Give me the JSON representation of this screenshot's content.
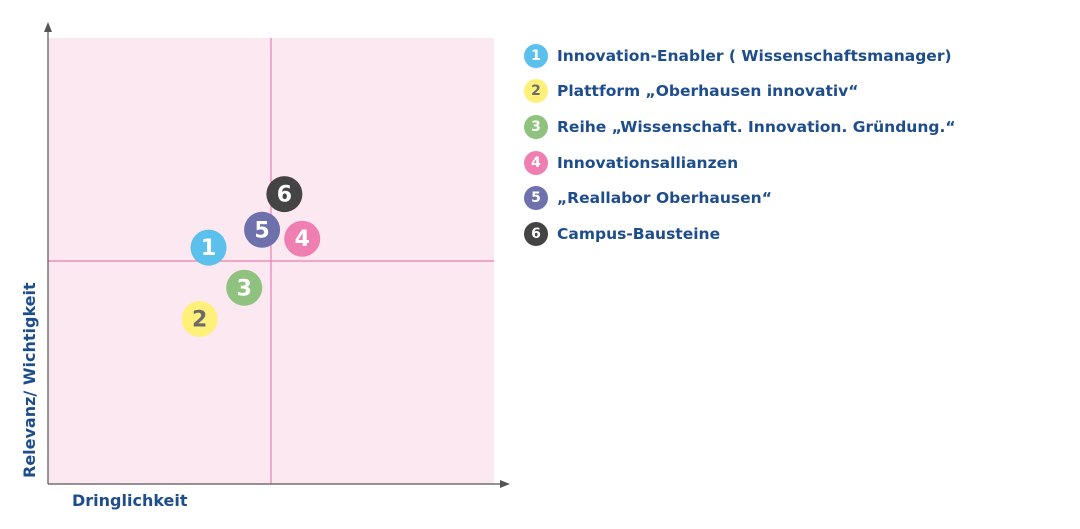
{
  "chart_data": {
    "type": "scatter",
    "title": "",
    "xlabel": "Dringlichkeit",
    "ylabel": "Relevanz/ Wichtigkeit",
    "xlim": [
      0,
      10
    ],
    "ylim": [
      0,
      10
    ],
    "quadrant_x": 5,
    "quadrant_y": 5,
    "grid": false,
    "legend_position": "right",
    "points": [
      {
        "number": "1",
        "label": "Innovation-Enabler ( Wissenschaftsmanager)",
        "x": 3.6,
        "y": 5.3,
        "color": "#5bc0eb",
        "text_color": "#ffffff"
      },
      {
        "number": "2",
        "label": "Plattform „Oberhausen innovativ“",
        "x": 3.4,
        "y": 3.7,
        "color": "#fff07a",
        "text_color": "#6b6b6b"
      },
      {
        "number": "3",
        "label": "Reihe „Wissenschaft. Innovation. Gründung.“",
        "x": 4.4,
        "y": 4.4,
        "color": "#8fc27e",
        "text_color": "#ffffff"
      },
      {
        "number": "4",
        "label": "Innovationsallianzen",
        "x": 5.7,
        "y": 5.5,
        "color": "#ef7fb0",
        "text_color": "#ffffff"
      },
      {
        "number": "5",
        "label": "„Reallabor Oberhausen“",
        "x": 4.8,
        "y": 5.7,
        "color": "#6f71ad",
        "text_color": "#ffffff"
      },
      {
        "number": "6",
        "label": "Campus-Bausteine",
        "x": 5.3,
        "y": 6.5,
        "color": "#444444",
        "text_color": "#ffffff"
      }
    ]
  },
  "colors": {
    "plot_background": "#fce8f1",
    "quadrant_lines": "#ea7fb0",
    "axes": "#555555",
    "axis_label": "#1e4d8c"
  }
}
